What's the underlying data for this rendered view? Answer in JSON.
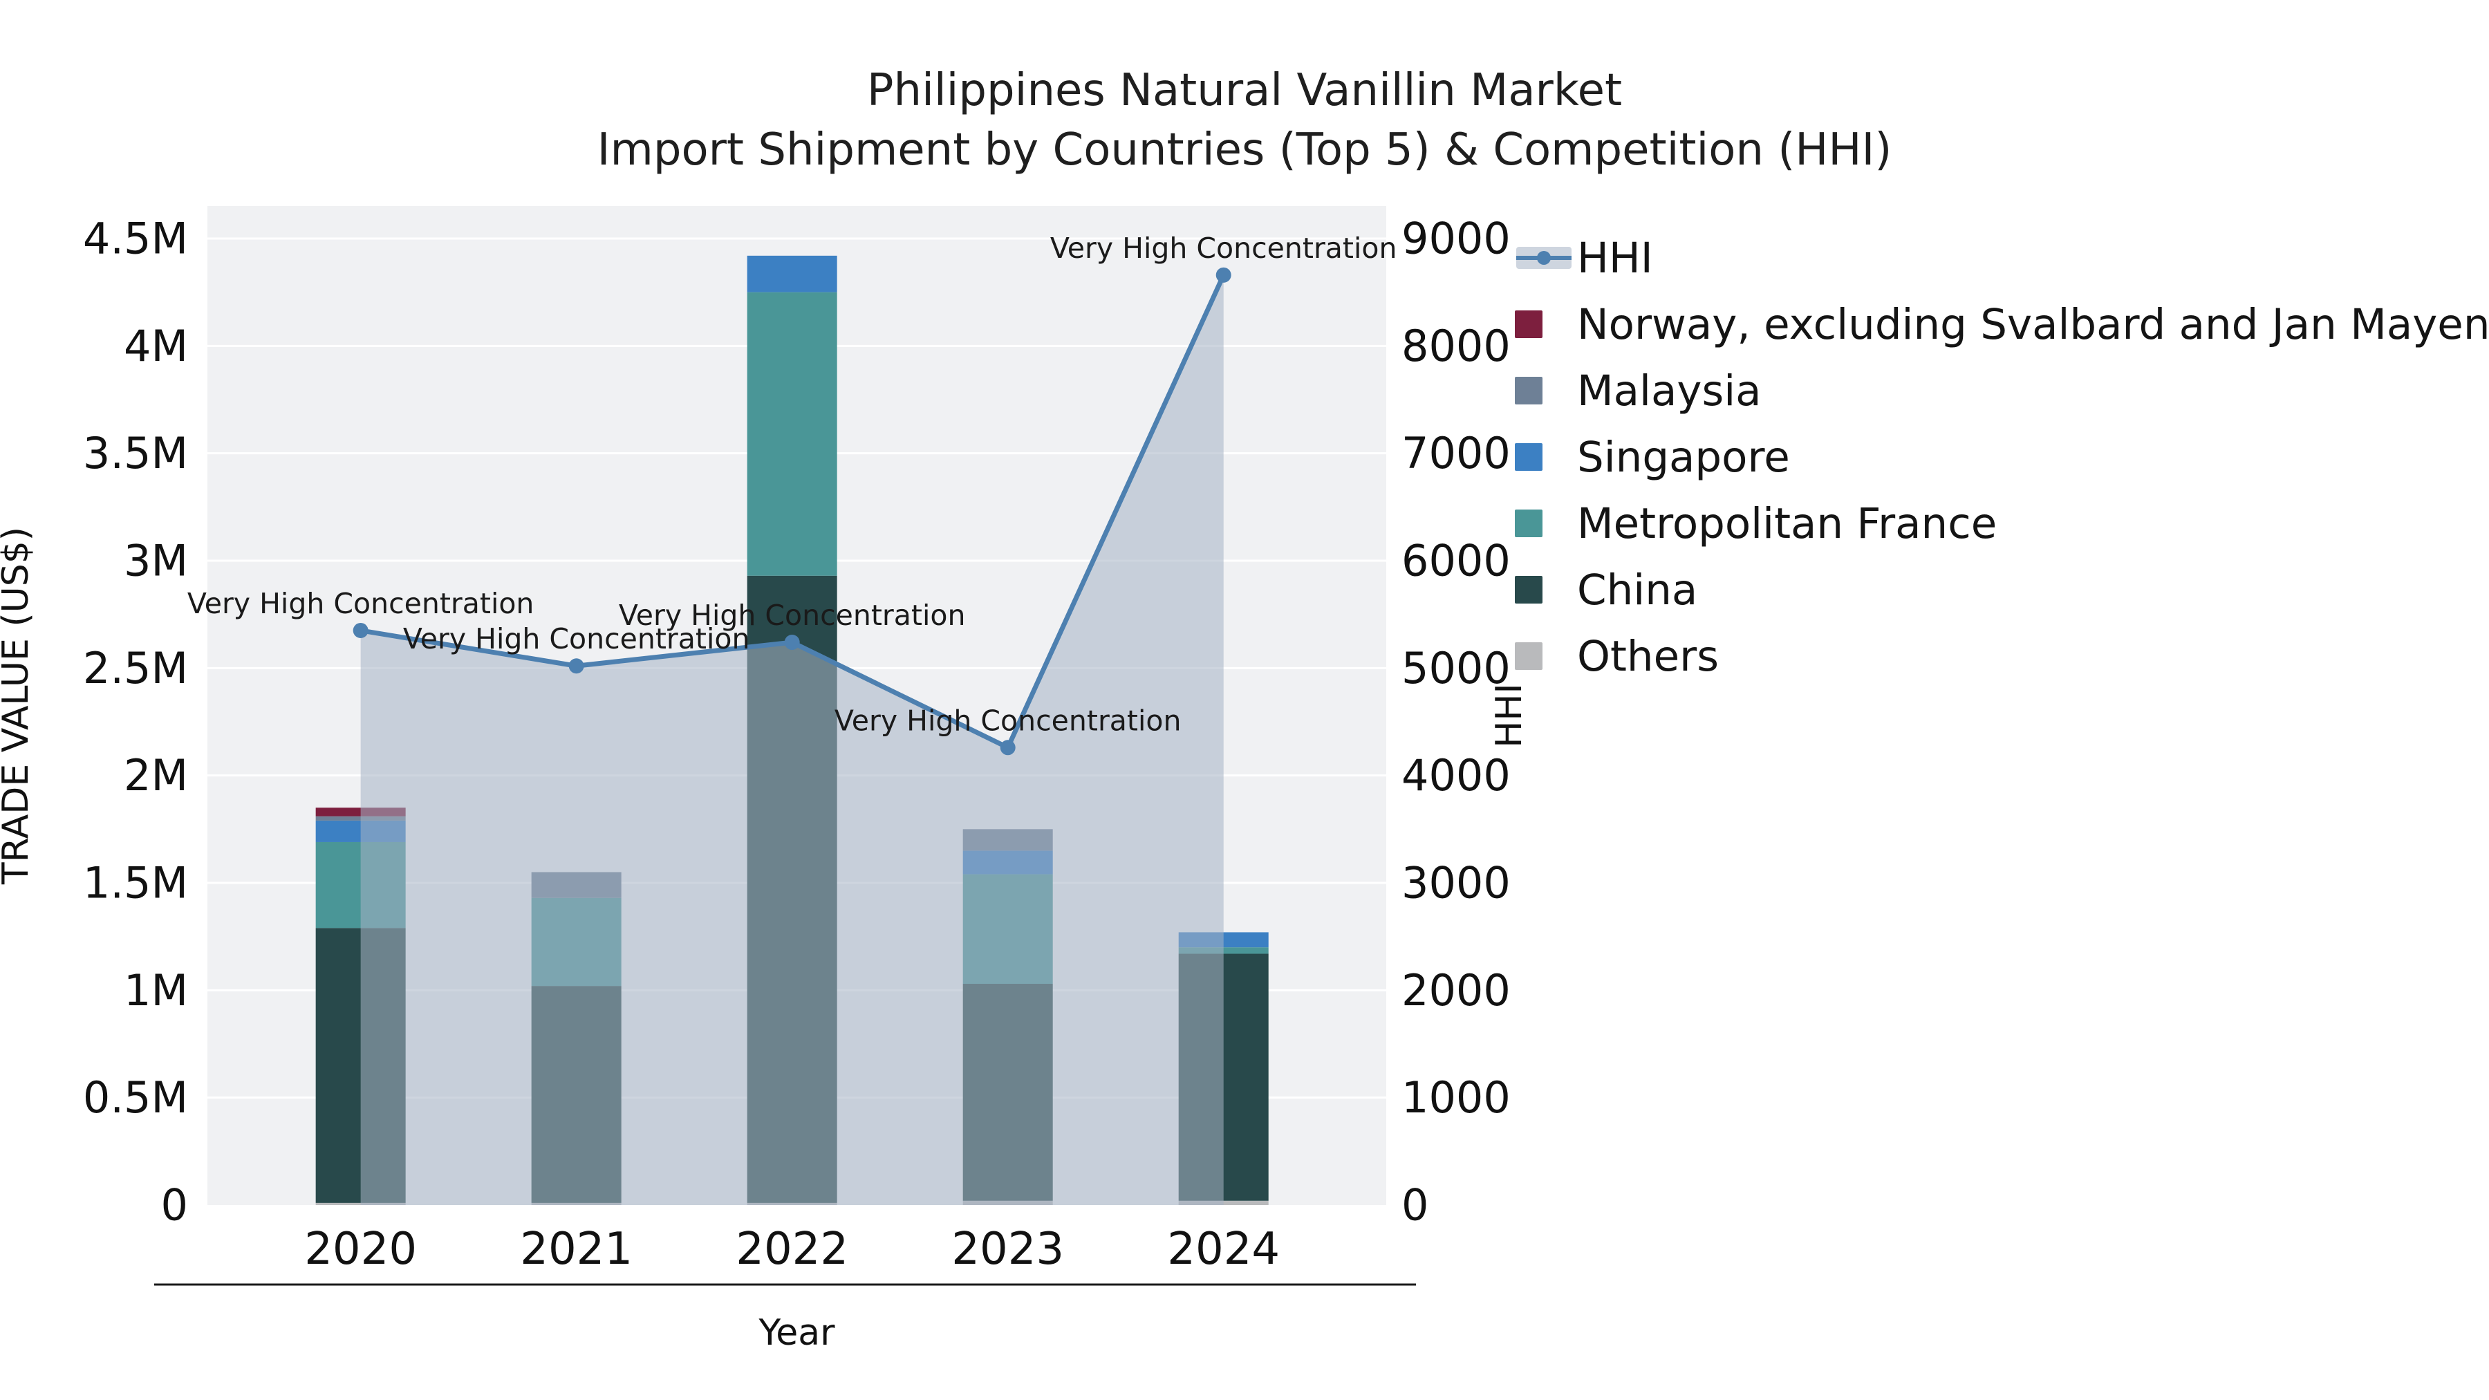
{
  "chart_data": {
    "type": "stacked-bar+line",
    "title": "Philippines Natural Vanillin Market",
    "subtitle": "Import Shipment by Countries (Top 5) & Competition (HHI)",
    "x_axis": {
      "title": "Year",
      "categories": [
        "2020",
        "2021",
        "2022",
        "2023",
        "2024"
      ]
    },
    "left_axis": {
      "title": "TRADE VALUE (US$)",
      "min": 0,
      "max": 4500000,
      "ticks": [
        "0",
        "0.5M",
        "1M",
        "1.5M",
        "2M",
        "2.5M",
        "3M",
        "3.5M",
        "4M",
        "4.5M"
      ]
    },
    "right_axis": {
      "title": "HHI",
      "min": 0,
      "max": 9000,
      "ticks": [
        "0",
        "1000",
        "2000",
        "3000",
        "4000",
        "5000",
        "6000",
        "7000",
        "8000",
        "9000"
      ]
    },
    "bar_value_unit": "million US$",
    "stack_order": [
      "Others",
      "China",
      "Metropolitan France",
      "Singapore",
      "Malaysia",
      "Norway, excluding Svalbard and Jan Mayen"
    ],
    "series": [
      {
        "name": "Norway, excluding Svalbard and Jan Mayen",
        "color": "#7d1f3e",
        "values": [
          0.04,
          0,
          0,
          0,
          0
        ]
      },
      {
        "name": "Malaysia",
        "color": "#6e8096",
        "values": [
          0.02,
          0.12,
          0,
          0.1,
          0
        ]
      },
      {
        "name": "Singapore",
        "color": "#3c80c3",
        "values": [
          0.1,
          0,
          0.17,
          0.11,
          0.07
        ]
      },
      {
        "name": "Metropolitan France",
        "color": "#4a9697",
        "values": [
          0.4,
          0.41,
          1.32,
          0.51,
          0.03
        ]
      },
      {
        "name": "China",
        "color": "#28494b",
        "values": [
          1.28,
          1.01,
          2.92,
          1.01,
          1.15
        ]
      },
      {
        "name": "Others",
        "color": "#b9babc",
        "values": [
          0.01,
          0.01,
          0.01,
          0.02,
          0.02
        ]
      }
    ],
    "hhi": {
      "name": "HHI",
      "line_color": "#4d80b0",
      "fill_color": "rgba(165,178,196,0.55)",
      "values": [
        5350,
        5020,
        5240,
        4260,
        8660
      ]
    },
    "annotations": [
      "Very High Concentration",
      "Very High Concentration",
      "Very High Concentration",
      "Very High Concentration",
      "Very High Concentration"
    ],
    "legend": [
      {
        "label": "HHI",
        "type": "line"
      },
      {
        "label": "Norway, excluding Svalbard and Jan Mayen",
        "type": "swatch",
        "color": "#7d1f3e"
      },
      {
        "label": "Malaysia",
        "type": "swatch",
        "color": "#6e8096"
      },
      {
        "label": "Singapore",
        "type": "swatch",
        "color": "#3c80c3"
      },
      {
        "label": "Metropolitan France",
        "type": "swatch",
        "color": "#4a9697"
      },
      {
        "label": "China",
        "type": "swatch",
        "color": "#28494b"
      },
      {
        "label": "Others",
        "type": "swatch",
        "color": "#b9babc"
      }
    ],
    "plot_background": "#f0f1f3",
    "grid_color": "#ffffff"
  }
}
